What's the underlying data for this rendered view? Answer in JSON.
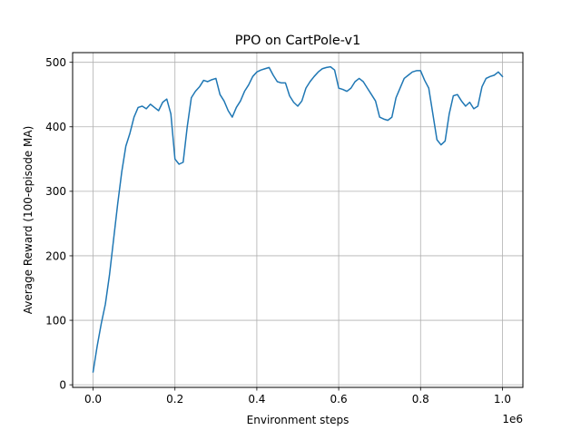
{
  "chart_data": {
    "type": "line",
    "title": "PPO on CartPole-v1",
    "xlabel": "Environment steps",
    "ylabel": "Average Reward (100-episode MA)",
    "x_offset_label": "1e6",
    "xlim": [
      -50000,
      1050000
    ],
    "ylim": [
      -4,
      515
    ],
    "xticks": [
      0,
      200000,
      400000,
      600000,
      800000,
      1000000
    ],
    "xtick_labels": [
      "0.0",
      "0.2",
      "0.4",
      "0.6",
      "0.8",
      "1.0"
    ],
    "yticks": [
      0,
      100,
      200,
      300,
      400,
      500
    ],
    "ytick_labels": [
      "0",
      "100",
      "200",
      "300",
      "400",
      "500"
    ],
    "grid": true,
    "series": [
      {
        "color": "#1f77b4",
        "x": [
          0,
          10000,
          20000,
          30000,
          40000,
          50000,
          60000,
          70000,
          80000,
          90000,
          100000,
          110000,
          120000,
          130000,
          140000,
          150000,
          160000,
          170000,
          180000,
          190000,
          200000,
          210000,
          220000,
          230000,
          240000,
          250000,
          260000,
          270000,
          280000,
          290000,
          300000,
          310000,
          320000,
          330000,
          340000,
          350000,
          360000,
          370000,
          380000,
          390000,
          400000,
          410000,
          420000,
          430000,
          440000,
          450000,
          460000,
          470000,
          480000,
          490000,
          500000,
          510000,
          520000,
          530000,
          540000,
          550000,
          560000,
          570000,
          580000,
          590000,
          600000,
          610000,
          620000,
          630000,
          640000,
          650000,
          660000,
          670000,
          680000,
          690000,
          700000,
          710000,
          720000,
          730000,
          740000,
          750000,
          760000,
          770000,
          780000,
          790000,
          800000,
          810000,
          820000,
          830000,
          840000,
          850000,
          860000,
          870000,
          880000,
          890000,
          900000,
          910000,
          920000,
          930000,
          940000,
          950000,
          960000,
          970000,
          980000,
          990000,
          1000000
        ],
        "y": [
          20,
          60,
          95,
          125,
          170,
          225,
          280,
          330,
          370,
          390,
          415,
          430,
          432,
          428,
          435,
          430,
          425,
          438,
          443,
          420,
          350,
          342,
          345,
          400,
          445,
          455,
          462,
          472,
          470,
          473,
          475,
          450,
          440,
          425,
          415,
          430,
          440,
          455,
          465,
          478,
          485,
          488,
          490,
          492,
          480,
          470,
          468,
          468,
          448,
          438,
          432,
          440,
          460,
          470,
          478,
          485,
          490,
          492,
          493,
          488,
          460,
          458,
          455,
          460,
          470,
          475,
          470,
          460,
          450,
          440,
          415,
          412,
          410,
          415,
          445,
          460,
          475,
          480,
          485,
          487,
          487,
          472,
          460,
          420,
          380,
          372,
          378,
          420,
          448,
          450,
          440,
          432,
          438,
          428,
          432,
          462,
          475,
          478,
          480,
          485,
          478
        ]
      }
    ]
  }
}
